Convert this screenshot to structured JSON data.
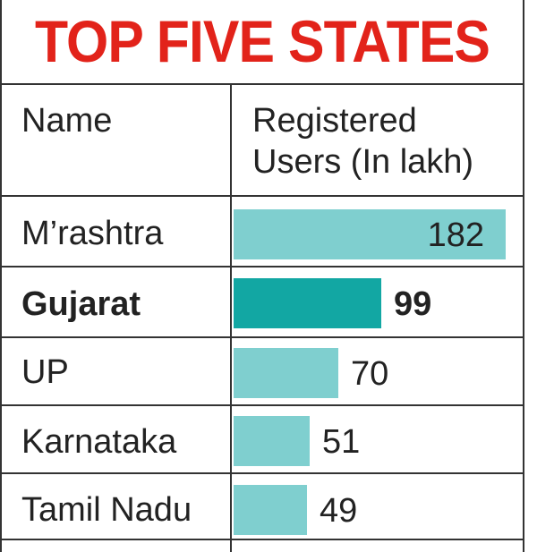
{
  "chart_data": {
    "type": "bar",
    "title": "TOP FIVE STATES",
    "columns": {
      "name": "Name",
      "value_line1": "Registered",
      "value_line2": "Users (In lakh)"
    },
    "categories": [
      "M’rashtra",
      "Gujarat",
      "UP",
      "Karnataka",
      "Tamil Nadu"
    ],
    "values": [
      182,
      99,
      70,
      51,
      49
    ],
    "value_labels": [
      "182",
      "99",
      "70",
      "51",
      "49"
    ],
    "highlight_index": 1,
    "colors": {
      "bar": "#7fcfcf",
      "highlight_bar": "#12a7a3",
      "title": "#e2231a",
      "text": "#222222",
      "rule": "#333333"
    }
  }
}
